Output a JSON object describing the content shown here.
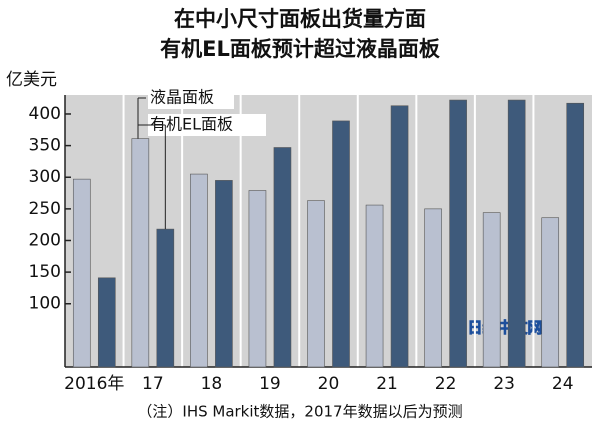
{
  "chart_data": {
    "type": "bar",
    "title": "在中小尺寸面板出货量方面",
    "subtitle": "有机EL面板预计超过液晶面板",
    "y_label": "亿美元",
    "categories": [
      "2016年",
      "17",
      "18",
      "19",
      "20",
      "21",
      "22",
      "23",
      "24"
    ],
    "series": [
      {
        "name": "液晶面板",
        "color": "#b9c0d0",
        "values": [
          297,
          361,
          305,
          279,
          263,
          256,
          250,
          244,
          236
        ]
      },
      {
        "name": "有机EL面板",
        "color": "#3e5a7b",
        "values": [
          141,
          218,
          295,
          347,
          389,
          413,
          422,
          422,
          417
        ]
      }
    ],
    "ylim": [
      0,
      430
    ],
    "yticks": [
      100,
      150,
      200,
      250,
      300,
      350,
      400
    ],
    "note": "（注）IHS Markit数据，2017年数据以后为预测",
    "watermark": "日经中文网"
  }
}
